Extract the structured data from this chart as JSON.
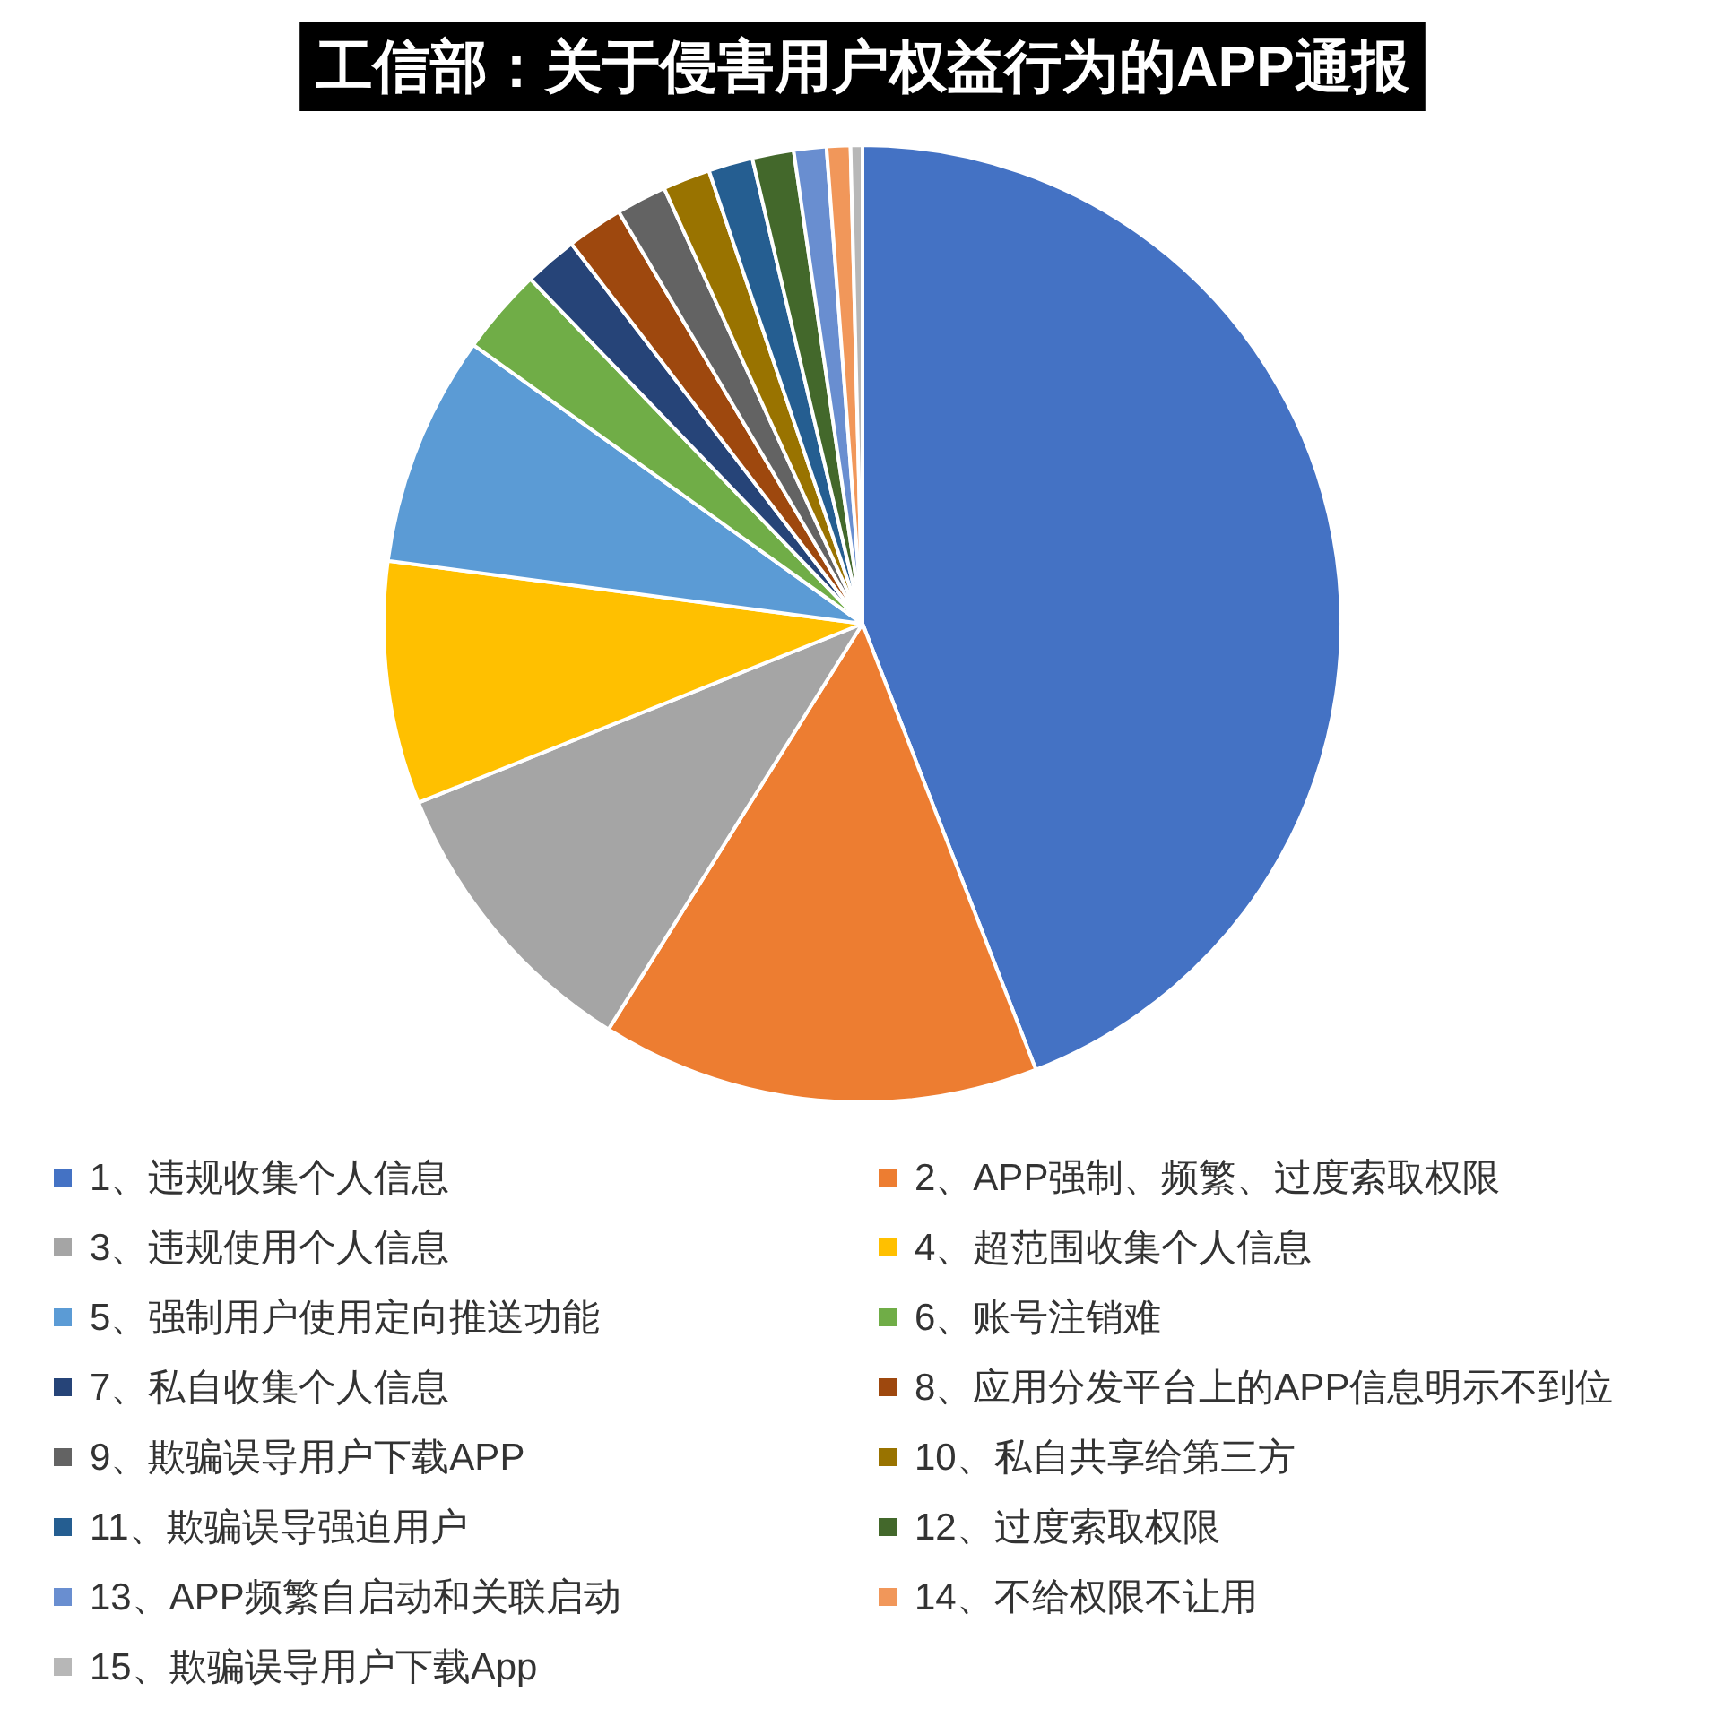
{
  "chart_data": {
    "type": "pie",
    "title": "工信部：关于侵害用户权益行为的APP通报",
    "categories": [
      "1、违规收集个人信息",
      "2、APP强制、频繁、过度索取权限",
      "3、违规使用个人信息",
      "4、超范围收集个人信息",
      "5、强制用户使用定向推送功能",
      "6、账号注销难",
      "7、私自收集个人信息",
      "8、应用分发平台上的APP信息明示不到位",
      "9、欺骗误导用户下载APP",
      "10、私自共享给第三方",
      "11、欺骗误导强迫用户",
      "12、过度索取权限",
      "13、APP频繁自启动和关联启动",
      "14、不给权限不让用",
      "15、欺骗误导用户下载App"
    ],
    "values": [
      44.1,
      14.8,
      10.0,
      8.2,
      7.8,
      2.9,
      1.8,
      1.9,
      1.7,
      1.6,
      1.5,
      1.4,
      1.1,
      0.8,
      0.4
    ],
    "colors": [
      "#4472c4",
      "#ed7d31",
      "#a5a5a5",
      "#ffc000",
      "#5b9bd5",
      "#70ad47",
      "#264478",
      "#9e480e",
      "#636363",
      "#997300",
      "#255e91",
      "#43682b",
      "#698ed0",
      "#f1975a",
      "#b7b7b7"
    ],
    "legend": "bottom"
  }
}
